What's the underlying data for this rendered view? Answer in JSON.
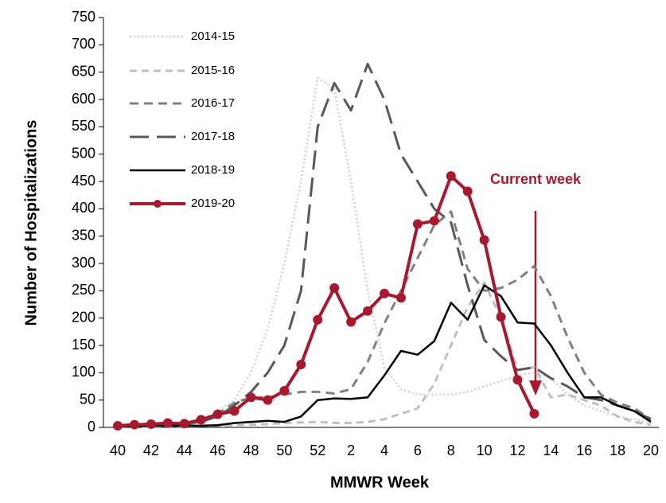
{
  "chart_data": {
    "type": "line",
    "xlabel": "MMWR Week",
    "ylabel": "Number of Hospitalizations",
    "annotation": "Current week",
    "categories": [
      "40",
      null,
      "42",
      null,
      "44",
      null,
      "46",
      null,
      "48",
      null,
      "50",
      null,
      "52",
      null,
      "2",
      null,
      "4",
      null,
      "6",
      null,
      "8",
      null,
      "10",
      null,
      "12",
      null,
      "14",
      null,
      "16",
      null,
      "18",
      null,
      "20"
    ],
    "ylim": [
      0,
      750
    ],
    "yticks": [
      0,
      50,
      100,
      150,
      200,
      250,
      300,
      350,
      400,
      450,
      500,
      550,
      600,
      650,
      700,
      750
    ],
    "legend": "upper-left",
    "series": [
      {
        "name": "2014-15",
        "color": "#d0d0d0",
        "values": [
          2,
          3,
          4,
          5,
          8,
          15,
          30,
          50,
          100,
          180,
          300,
          450,
          640,
          620,
          450,
          250,
          110,
          70,
          60,
          60,
          60,
          65,
          75,
          85,
          95,
          100,
          90,
          60,
          40,
          30,
          20,
          15,
          8
        ]
      },
      {
        "name": "2015-16",
        "color": "#bfbfbf",
        "values": [
          1,
          1,
          2,
          2,
          2,
          3,
          3,
          4,
          5,
          6,
          8,
          9,
          10,
          8,
          8,
          10,
          15,
          25,
          35,
          80,
          150,
          220,
          265,
          200,
          105,
          110,
          55,
          60,
          50,
          40,
          20,
          10,
          5
        ]
      },
      {
        "name": "2016-17",
        "color": "#808080",
        "values": [
          2,
          2,
          3,
          4,
          5,
          10,
          25,
          45,
          55,
          55,
          60,
          65,
          65,
          62,
          70,
          120,
          190,
          250,
          310,
          370,
          395,
          290,
          250,
          255,
          270,
          295,
          240,
          165,
          100,
          60,
          45,
          35,
          15
        ]
      },
      {
        "name": "2017-18",
        "color": "#595959",
        "values": [
          2,
          2,
          3,
          4,
          5,
          10,
          20,
          40,
          65,
          100,
          150,
          250,
          550,
          630,
          580,
          665,
          600,
          500,
          450,
          400,
          375,
          260,
          160,
          130,
          105,
          110,
          90,
          75,
          55,
          50,
          40,
          30,
          15
        ]
      },
      {
        "name": "2018-19",
        "color": "#000000",
        "values": [
          2,
          2,
          3,
          3,
          3,
          3,
          4,
          8,
          10,
          12,
          10,
          20,
          50,
          53,
          52,
          55,
          95,
          140,
          133,
          158,
          228,
          197,
          260,
          240,
          192,
          190,
          150,
          100,
          55,
          55,
          40,
          30,
          10
        ]
      },
      {
        "name": "2019-20",
        "color": "#a6192e",
        "values": [
          3,
          5,
          6,
          8,
          7,
          14,
          24,
          30,
          55,
          50,
          67,
          115,
          197,
          255,
          193,
          213,
          245,
          237,
          372,
          378,
          460,
          432,
          343,
          202,
          87,
          25,
          null,
          null,
          null,
          null,
          null,
          null,
          null
        ]
      }
    ]
  }
}
